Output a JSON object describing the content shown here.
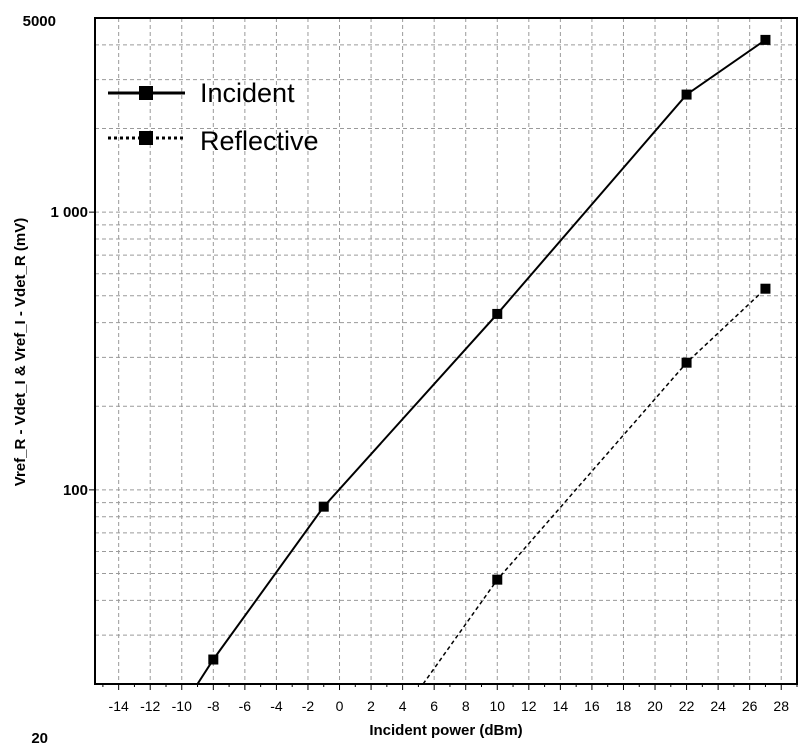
{
  "chart_data": {
    "type": "line",
    "title": "",
    "xlabel": "Incident power (dBm)",
    "ylabel": "Vref_R - Vdet_I & Vref_I - Vdet_R (mV)",
    "xlim": [
      -15.5,
      29
    ],
    "ylim": [
      20,
      5000
    ],
    "yscale": "log",
    "x_ticks": [
      -14,
      -12,
      -10,
      -8,
      -6,
      -4,
      -2,
      0,
      2,
      4,
      6,
      8,
      10,
      12,
      14,
      16,
      18,
      20,
      22,
      24,
      26,
      28
    ],
    "x_tick_labels": [
      "-14",
      "-12",
      "-10",
      "-8",
      "-6",
      "-4",
      "-2",
      "0",
      "2",
      "4",
      "6",
      "8",
      "10",
      "12",
      "14",
      "16",
      "18",
      "20",
      "22",
      "24",
      "26",
      "28"
    ],
    "y_tick_labels": [
      {
        "value": 5000,
        "label": "5000"
      },
      {
        "value": 1000,
        "label": "1 000"
      },
      {
        "value": 100,
        "label": "100"
      },
      {
        "value": 20,
        "label": "20"
      }
    ],
    "grid": true,
    "legend_position": "top-left",
    "series": [
      {
        "name": "Incident",
        "line_style": "solid",
        "curve_x": [
          -9,
          -8,
          -1,
          10,
          22,
          27
        ],
        "curve_y": [
          20,
          24.5,
          87,
          430,
          2650,
          4170
        ],
        "markers_x": [
          -8,
          -1,
          10,
          22,
          27
        ],
        "markers_y": [
          24.5,
          87,
          430,
          2650,
          4170
        ],
        "color": "#000000"
      },
      {
        "name": "Reflective",
        "line_style": "dashed",
        "curve_x": [
          5.3,
          10,
          22,
          27
        ],
        "curve_y": [
          20,
          47.5,
          287,
          530
        ],
        "markers_x": [
          10,
          22,
          27
        ],
        "markers_y": [
          47.5,
          287,
          530
        ],
        "color": "#000000"
      }
    ]
  }
}
